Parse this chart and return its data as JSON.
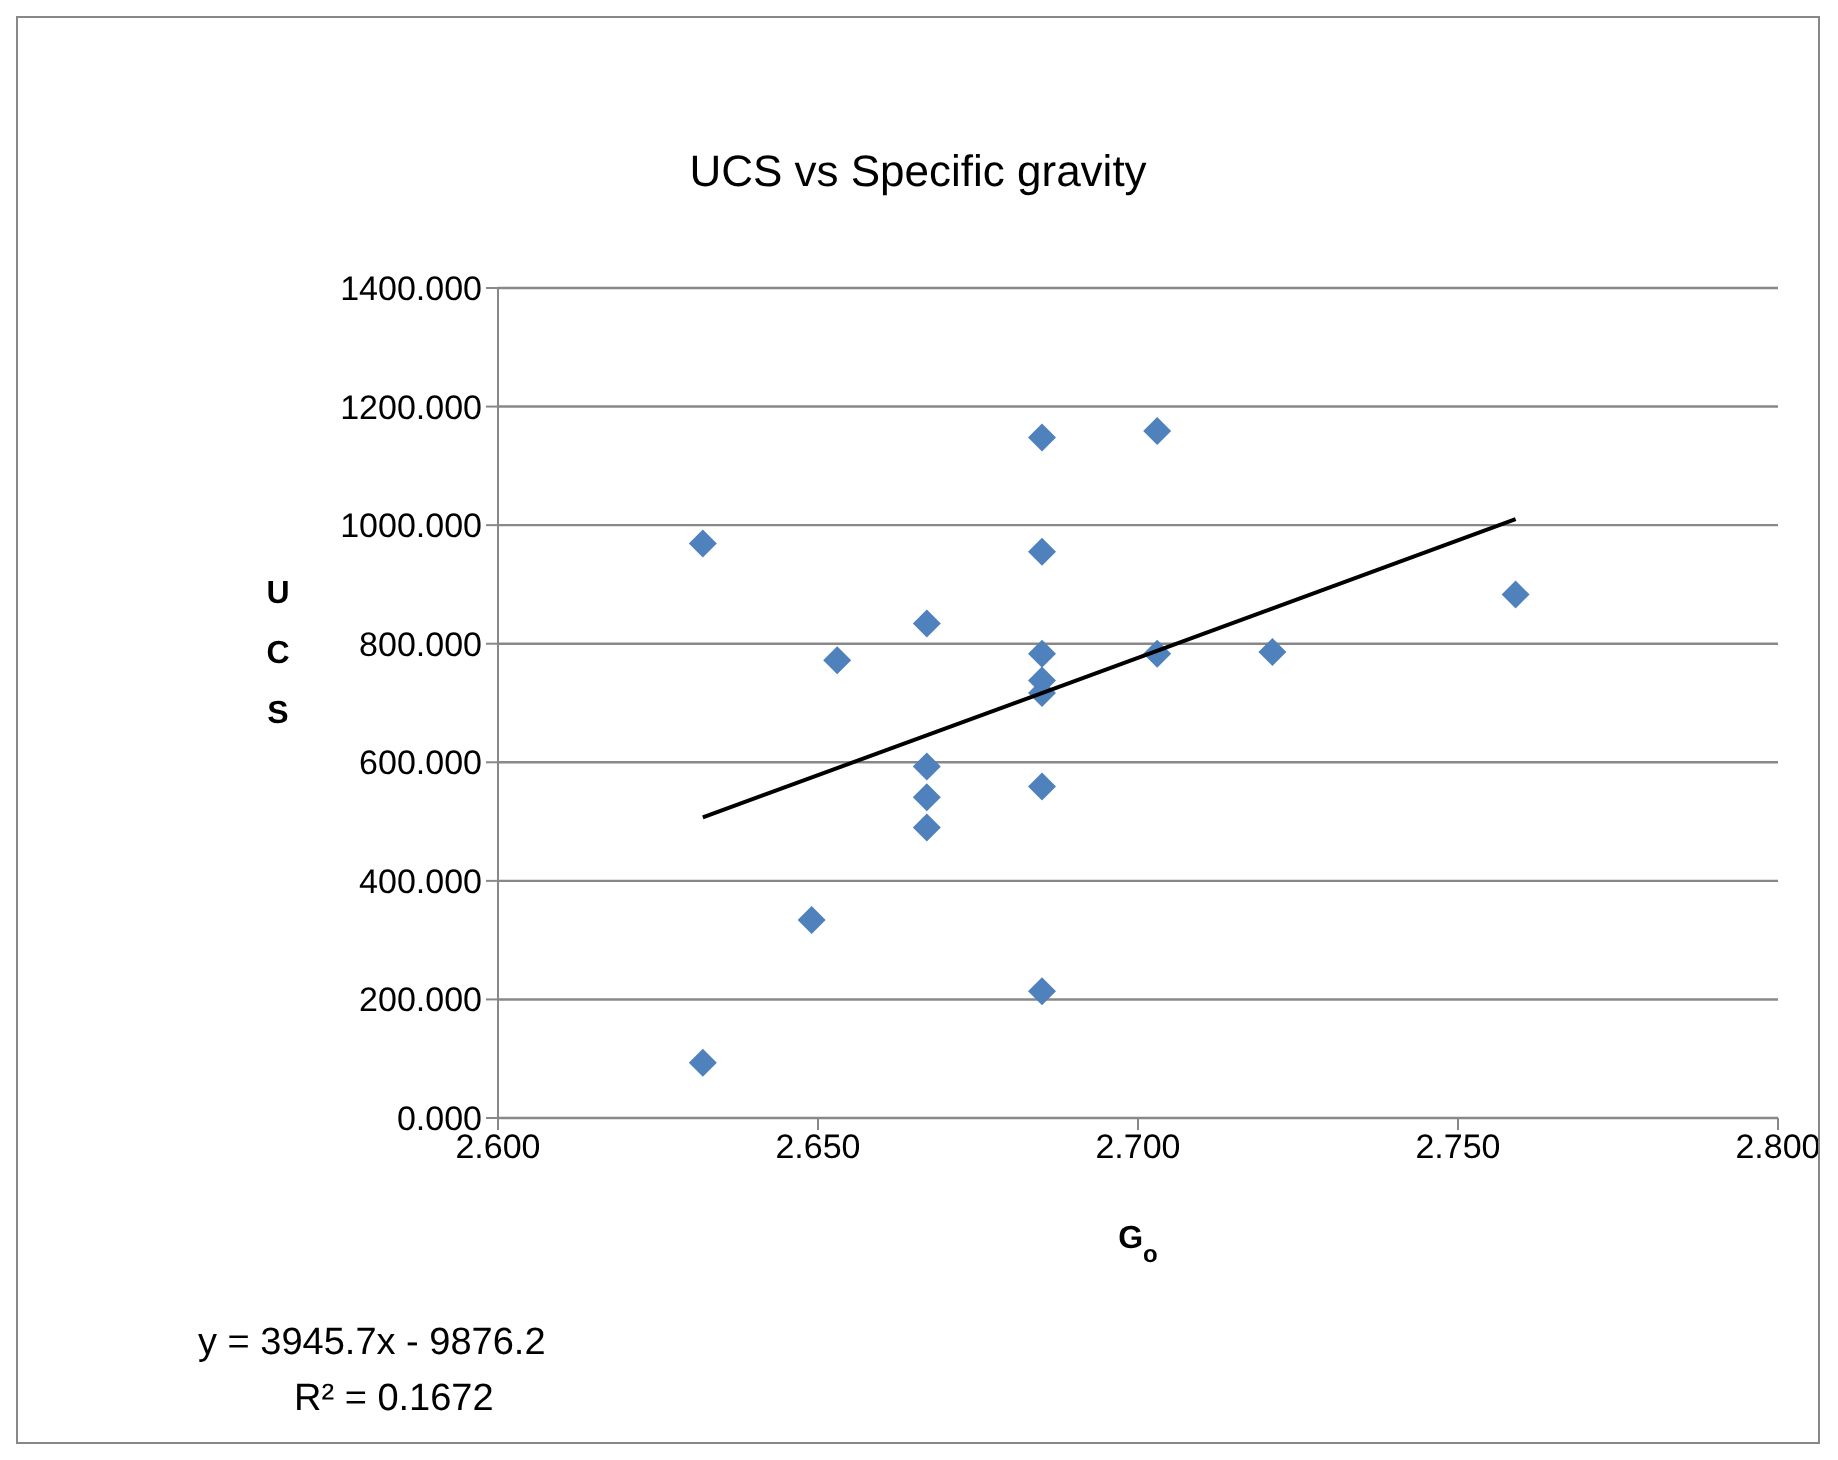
{
  "chart_data": {
    "type": "scatter",
    "title": "UCS vs Specific gravity",
    "xlabel": "G$_{o}$",
    "ylabel": "UCS",
    "annotations": [
      "y = 3945.7x - 9876.2",
      "R² = 0.1672"
    ],
    "series": [
      {
        "color": "#4f81bd",
        "marker": "diamond",
        "x": [
          2.632,
          2.632,
          2.649,
          2.653,
          2.667,
          2.667,
          2.667,
          2.667,
          2.685,
          2.685,
          2.685,
          2.685,
          2.685,
          2.685,
          2.685,
          2.703,
          2.703,
          2.721,
          2.759
        ],
        "values": [
          93,
          969,
          334,
          772,
          834,
          593,
          541,
          490,
          1148,
          955,
          783,
          738,
          717,
          559,
          214,
          1159,
          783,
          786,
          883
        ]
      },
      {
        "type": "line",
        "color": "#000000",
        "marker": "none",
        "x": [
          2.632,
          2.759
        ],
        "values": [
          507,
          1010
        ]
      }
    ],
    "xlim": [
      2.6,
      2.8
    ],
    "xticks": [
      {
        "value": 2.6,
        "label": "2.600"
      },
      {
        "value": 2.65,
        "label": "2.650"
      },
      {
        "value": 2.7,
        "label": "2.700"
      },
      {
        "value": 2.75,
        "label": "2.750"
      },
      {
        "value": 2.8,
        "label": "2.800"
      }
    ],
    "ylim": [
      0,
      1400
    ],
    "yticks": [
      {
        "value": 0,
        "label": "0.000"
      },
      {
        "value": 200,
        "label": "200.000"
      },
      {
        "value": 400,
        "label": "400.000"
      },
      {
        "value": 600,
        "label": "600.000"
      },
      {
        "value": 800,
        "label": "800.000"
      },
      {
        "value": 1000,
        "label": "1000.000"
      },
      {
        "value": 1200,
        "label": "1200.000"
      },
      {
        "value": 1400,
        "label": "1400.000"
      }
    ],
    "grid": "y",
    "legend": false
  }
}
